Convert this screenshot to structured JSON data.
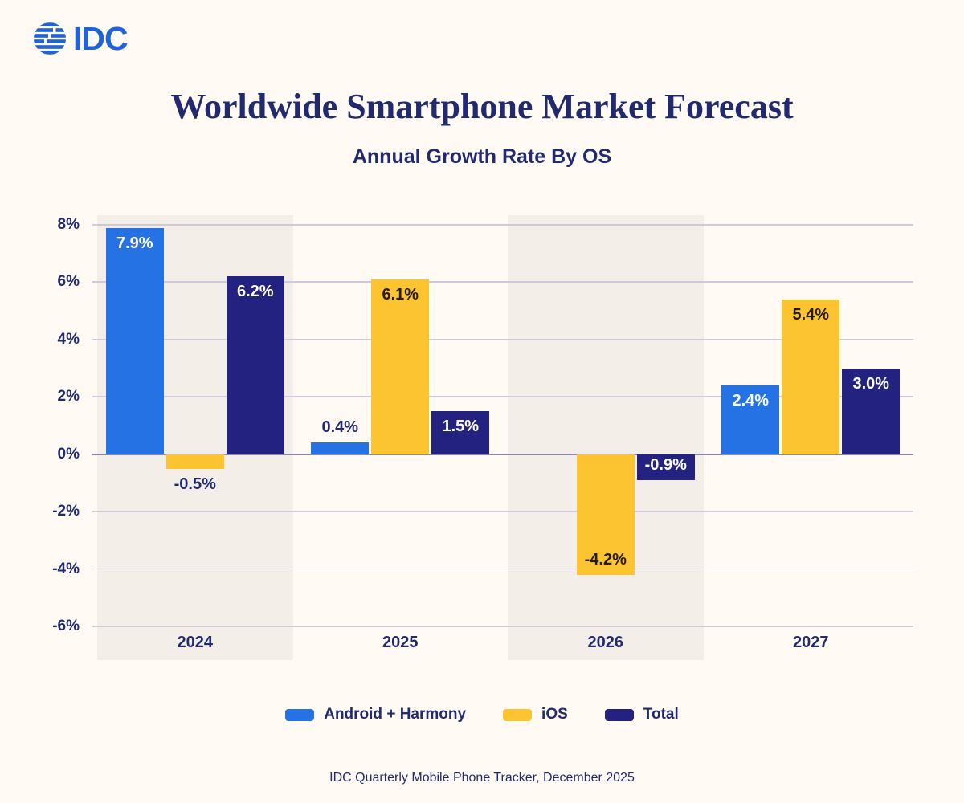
{
  "logo": {
    "text": "IDC"
  },
  "header": {
    "title": "Worldwide Smartphone Market Forecast",
    "subtitle": "Annual Growth Rate By OS"
  },
  "footer": {
    "source": "IDC Quarterly Mobile Phone Tracker, December 2025"
  },
  "colors": {
    "page_bg": "#FFFBF4",
    "band": "#F4EEE8",
    "grid": "#CFC9DB",
    "zero_line": "#8C87A2",
    "text_navy": "#222A6F",
    "logo_blue": "#2163D2",
    "label_on_yellow": "#241B0E",
    "label_on_dark": "#FFFFFF"
  },
  "chart_data": {
    "type": "bar",
    "title": "Worldwide Smartphone Market Forecast",
    "subtitle": "Annual Growth Rate By OS",
    "xlabel": "",
    "ylabel": "",
    "categories": [
      "2024",
      "2025",
      "2026",
      "2027"
    ],
    "series": [
      {
        "name": "Android + Harmony",
        "color": "#2472E4",
        "value_label_color": "#FFFFFF",
        "values": [
          7.9,
          0.4,
          null,
          2.4
        ],
        "labels": [
          "7.9%",
          "0.4%",
          null,
          "2.4%"
        ]
      },
      {
        "name": "iOS",
        "color": "#FDC431",
        "value_label_color": "#241B0E",
        "values": [
          -0.5,
          6.1,
          -4.2,
          5.4
        ],
        "labels": [
          "-0.5%",
          "6.1%",
          "-4.2%",
          "5.4%"
        ]
      },
      {
        "name": "Total",
        "color": "#242280",
        "value_label_color": "#FFFFFF",
        "values": [
          6.2,
          1.5,
          -0.9,
          3.0
        ],
        "labels": [
          "6.2%",
          "1.5%",
          "-0.9%",
          "3.0%"
        ]
      }
    ],
    "ylim": [
      -6,
      8
    ],
    "y_tick_values": [
      8,
      6,
      4,
      2,
      0,
      -2,
      -4,
      -6
    ],
    "y_tick_labels": [
      "8%",
      "6%",
      "4%",
      "2%",
      "0%",
      "-2%",
      "-4%",
      "-6%"
    ],
    "grid": true,
    "legend_position": "bottom",
    "highlighted_categories": [
      "2024",
      "2026"
    ],
    "outside_label_color": "#222A6F"
  }
}
